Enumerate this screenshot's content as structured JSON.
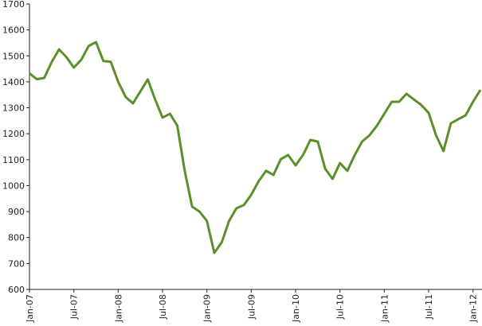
{
  "chart_data": {
    "type": "line",
    "categories": [
      "Jan-07",
      null,
      null,
      null,
      null,
      null,
      "Jul-07",
      null,
      null,
      null,
      null,
      null,
      "Jan-08",
      null,
      null,
      null,
      null,
      null,
      "Jul-08",
      null,
      null,
      null,
      null,
      null,
      "Jan-09",
      null,
      null,
      null,
      null,
      null,
      "Jul-09",
      null,
      null,
      null,
      null,
      null,
      "Jan-10",
      null,
      null,
      null,
      null,
      null,
      "Jul-10",
      null,
      null,
      null,
      null,
      null,
      "Jan-11",
      null,
      null,
      null,
      null,
      null,
      "Jul-11",
      null,
      null,
      null,
      null,
      null,
      "Jan-12",
      null
    ],
    "series": [
      {
        "color": "#5b8f29",
        "values": [
          1433,
          1410,
          1415,
          1476,
          1525,
          1495,
          1455,
          1485,
          1538,
          1553,
          1480,
          1477,
          1400,
          1342,
          1317,
          1363,
          1409,
          1332,
          1262,
          1277,
          1231,
          1057,
          919,
          900,
          864,
          741,
          781,
          864,
          913,
          925,
          965,
          1017,
          1057,
          1041,
          1102,
          1118,
          1078,
          1118,
          1176,
          1170,
          1065,
          1026,
          1087,
          1057,
          1118,
          1170,
          1194,
          1231,
          1277,
          1323,
          1323,
          1354,
          1332,
          1311,
          1280,
          1194,
          1133,
          1240,
          1256,
          1271,
          1323,
          1369
        ]
      }
    ],
    "ylim": [
      600,
      1700
    ],
    "yticks": [
      600,
      700,
      800,
      900,
      1000,
      1100,
      1200,
      1300,
      1400,
      1500,
      1600,
      1700
    ]
  }
}
